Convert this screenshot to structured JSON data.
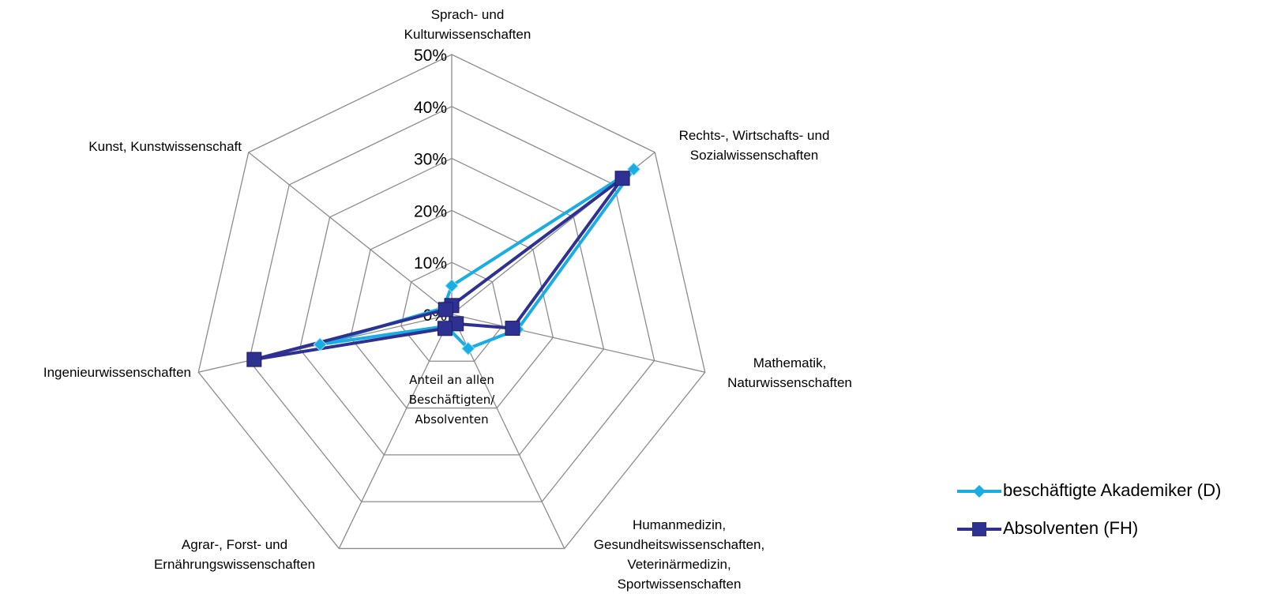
{
  "chart_data": {
    "type": "radar",
    "categories": [
      "Sprach- und\nKulturwissenschaften",
      "Rechts-, Wirtschafts- und\nSozialwissenschaften",
      "Mathematik,\nNaturwissenschaften",
      "Humanmedizin,\nGesundheitswissenschaften,\nVeterinärmedizin,\nSportwissenschaften",
      "Agrar-, Forst- und\nErnährungswissenschaften",
      "Ingenieurwissenschaften",
      "Kunst, Kunstwissenschaft"
    ],
    "series": [
      {
        "name": "beschäftigte Akademiker (D)",
        "color": "#1aade4",
        "marker": "diamond",
        "values": [
          5.5,
          44.8,
          13,
          7.3,
          2.5,
          26,
          2
        ]
      },
      {
        "name": "Absolventen (FH)",
        "color": "#2e3192",
        "marker": "square",
        "values": [
          1.7,
          42,
          12,
          2,
          3,
          39,
          1.5
        ]
      }
    ],
    "ylim": [
      0,
      50
    ],
    "yticks": [
      {
        "value": 0,
        "label": "0%"
      },
      {
        "value": 10,
        "label": "10%"
      },
      {
        "value": 20,
        "label": "20%"
      },
      {
        "value": 30,
        "label": "30%"
      },
      {
        "value": 40,
        "label": "40%"
      },
      {
        "value": 50,
        "label": "50%"
      }
    ],
    "annotation": "Anteil an allen\nBeschäftigten/\nAbsolventen",
    "grid": true
  }
}
